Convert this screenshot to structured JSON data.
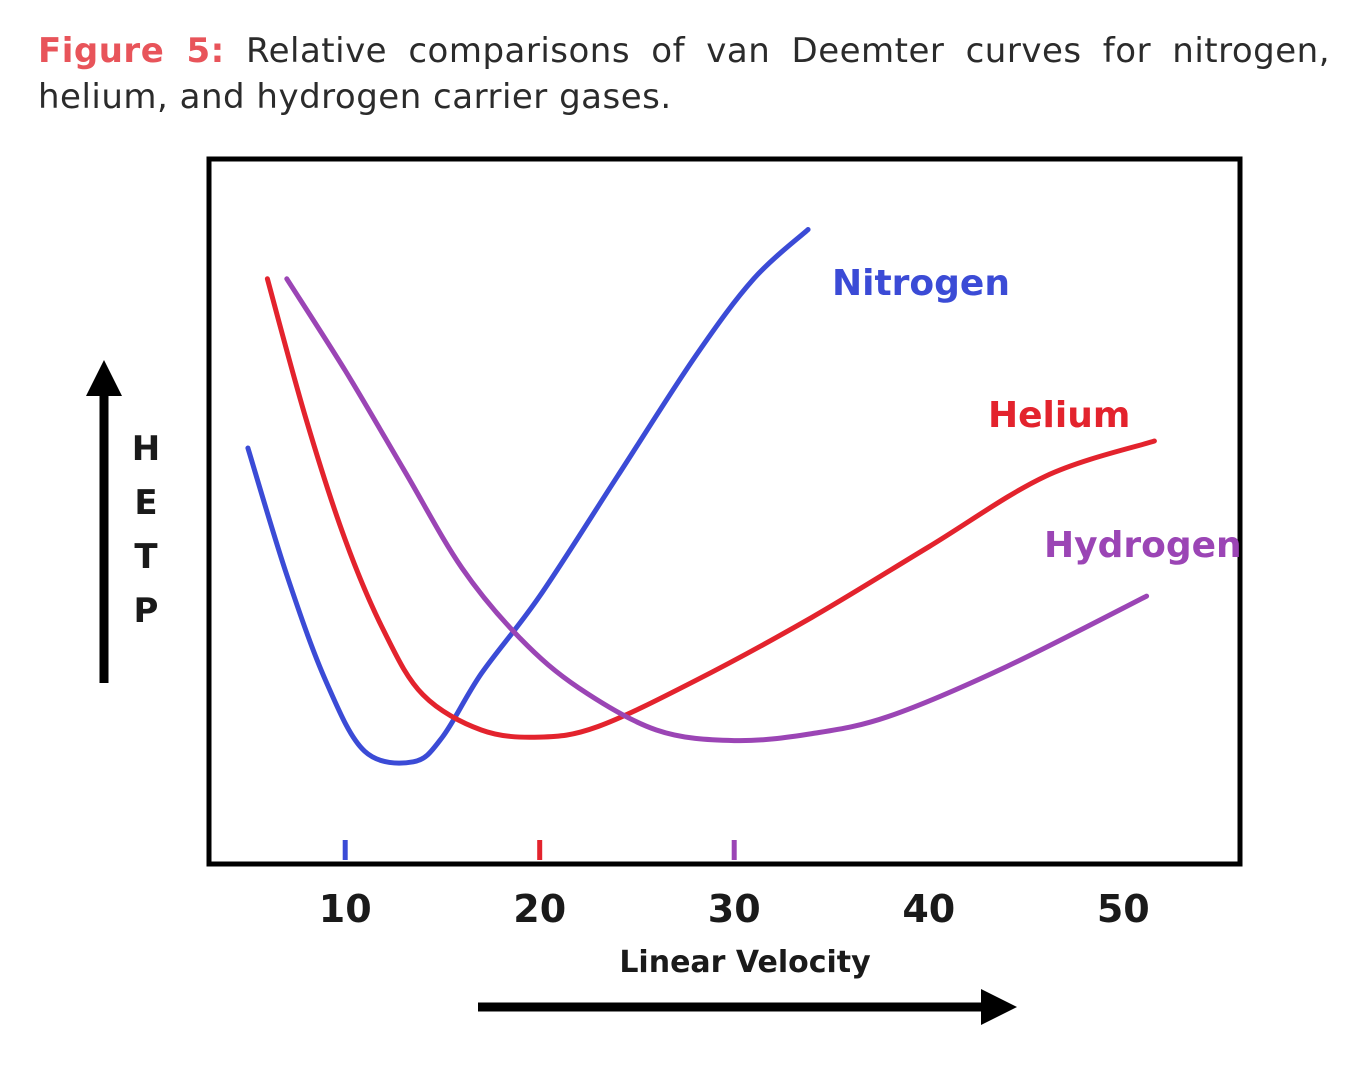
{
  "caption": {
    "label": "Figure 5:",
    "text": " Relative comparisons of van Deemter curves for nitrogen, helium, and hydrogen carrier gases."
  },
  "chart_data": {
    "type": "line",
    "title": "",
    "xlabel": "Linear Velocity",
    "ylabel": "HETP",
    "xlim": [
      3,
      56
    ],
    "ylim": [
      0,
      10
    ],
    "x_ticks": [
      10,
      20,
      30,
      40,
      50
    ],
    "grid": false,
    "legend": "inline labels at line ends",
    "optimum_markers": [
      {
        "x": 10,
        "color": "#3b4bd6"
      },
      {
        "x": 20,
        "color": "#e3232d"
      },
      {
        "x": 30,
        "color": "#9b45b5"
      }
    ],
    "series": [
      {
        "name": "Nitrogen",
        "color": "#3b4bd6",
        "points": [
          [
            5,
            5.9
          ],
          [
            7,
            4.1
          ],
          [
            9,
            2.6
          ],
          [
            11,
            1.6
          ],
          [
            13.5,
            1.45
          ],
          [
            15,
            1.8
          ],
          [
            17,
            2.7
          ],
          [
            20,
            3.8
          ],
          [
            24,
            5.5
          ],
          [
            28,
            7.2
          ],
          [
            31,
            8.3
          ],
          [
            33.8,
            9.0
          ]
        ]
      },
      {
        "name": "Helium",
        "color": "#e3232d",
        "points": [
          [
            6,
            8.3
          ],
          [
            8,
            6.3
          ],
          [
            10,
            4.6
          ],
          [
            12,
            3.3
          ],
          [
            14,
            2.4
          ],
          [
            17,
            1.9
          ],
          [
            20,
            1.8
          ],
          [
            23,
            1.95
          ],
          [
            28,
            2.6
          ],
          [
            34,
            3.5
          ],
          [
            40,
            4.5
          ],
          [
            46,
            5.5
          ],
          [
            51.6,
            6.0
          ]
        ]
      },
      {
        "name": "Hydrogen",
        "color": "#9b45b5",
        "points": [
          [
            7,
            8.3
          ],
          [
            10,
            7.0
          ],
          [
            13,
            5.6
          ],
          [
            16,
            4.2
          ],
          [
            19,
            3.2
          ],
          [
            22,
            2.5
          ],
          [
            26,
            1.9
          ],
          [
            30,
            1.75
          ],
          [
            34,
            1.85
          ],
          [
            38,
            2.1
          ],
          [
            44,
            2.8
          ],
          [
            51.2,
            3.8
          ]
        ]
      }
    ]
  }
}
